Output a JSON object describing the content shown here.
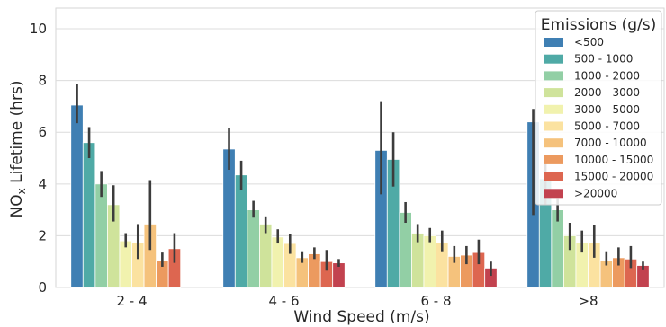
{
  "chart_data": {
    "type": "bar",
    "xlabel": "Wind Speed (m/s)",
    "ylabel_prefix": "NO",
    "ylabel_sub": "x",
    "ylabel_suffix": " Lifetime (hrs)",
    "ylim": [
      0,
      10.8
    ],
    "yticks": [
      0,
      2,
      4,
      6,
      8,
      10
    ],
    "grid": true,
    "legend_placement": "top-right",
    "legend_title": "Emissions (g/s)",
    "categories": [
      "2 - 4",
      "4 - 6",
      "6 - 8",
      ">8"
    ],
    "series": [
      {
        "name": "<500",
        "color": "#3f7fb3",
        "values": [
          7.05,
          5.35,
          5.3,
          6.4
        ],
        "err_low": [
          6.35,
          4.55,
          3.6,
          2.8
        ],
        "err_high": [
          7.85,
          6.15,
          7.2,
          6.9
        ]
      },
      {
        "name": "500 - 1000",
        "color": "#4faaa6",
        "values": [
          5.6,
          4.35,
          4.95,
          4.2
        ],
        "err_low": [
          5.0,
          3.75,
          3.9,
          3.2
        ],
        "err_high": [
          6.2,
          4.9,
          6.0,
          5.1
        ]
      },
      {
        "name": "1000 - 2000",
        "color": "#92cfa5",
        "values": [
          4.0,
          3.0,
          2.9,
          3.0
        ],
        "err_low": [
          3.5,
          2.7,
          2.5,
          2.55
        ],
        "err_high": [
          4.5,
          3.35,
          3.3,
          3.45
        ]
      },
      {
        "name": "2000 - 3000",
        "color": "#cfe39b",
        "values": [
          3.2,
          2.45,
          2.1,
          2.0
        ],
        "err_low": [
          2.55,
          2.1,
          1.75,
          1.45
        ],
        "err_high": [
          3.95,
          2.75,
          2.45,
          2.5
        ]
      },
      {
        "name": "3000 - 5000",
        "color": "#f1f2ae",
        "values": [
          1.8,
          1.95,
          2.0,
          1.75
        ],
        "err_low": [
          1.55,
          1.7,
          1.75,
          1.35
        ],
        "err_high": [
          2.1,
          2.25,
          2.3,
          2.2
        ]
      },
      {
        "name": "5000 - 7000",
        "color": "#fbe2a0",
        "values": [
          1.75,
          1.7,
          1.75,
          1.75
        ],
        "err_low": [
          1.1,
          1.3,
          1.4,
          1.15
        ],
        "err_high": [
          2.45,
          2.05,
          2.2,
          2.4
        ]
      },
      {
        "name": "7000 - 10000",
        "color": "#f5c27c",
        "values": [
          2.45,
          1.15,
          1.2,
          1.05
        ],
        "err_low": [
          1.45,
          0.95,
          0.95,
          0.85
        ],
        "err_high": [
          4.15,
          1.4,
          1.6,
          1.4
        ]
      },
      {
        "name": "10000 - 15000",
        "color": "#ec9a5f",
        "values": [
          1.05,
          1.3,
          1.25,
          1.15
        ],
        "err_low": [
          0.8,
          1.1,
          0.9,
          0.85
        ],
        "err_high": [
          1.35,
          1.55,
          1.6,
          1.55
        ]
      },
      {
        "name": "15000 - 20000",
        "color": "#dd6650",
        "values": [
          1.5,
          1.0,
          1.35,
          1.1
        ],
        "err_low": [
          0.95,
          0.65,
          0.9,
          0.75
        ],
        "err_high": [
          2.1,
          1.45,
          1.85,
          1.6
        ]
      },
      {
        "name": ">20000",
        "color": "#c2424f",
        "values": [
          0,
          0.95,
          0.75,
          0.85
        ],
        "err_low": [
          0,
          0.8,
          0.45,
          0.7
        ],
        "err_high": [
          0,
          1.1,
          1.0,
          1.0
        ]
      }
    ]
  }
}
